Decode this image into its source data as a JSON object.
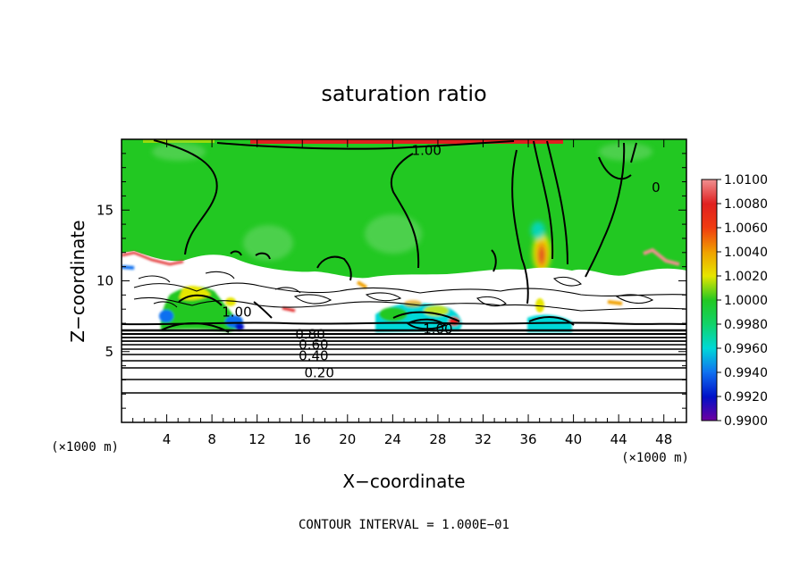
{
  "chart_data": {
    "type": "heatmap",
    "title": "saturation ratio",
    "xlabel": "X−coordinate",
    "ylabel": "Z−coordinate",
    "x_unit_label": "(×1000 m)",
    "y_unit_label": "(×1000 m)",
    "xlim": [
      0,
      50
    ],
    "ylim": [
      0,
      20
    ],
    "x_ticks": [
      4,
      8,
      12,
      16,
      20,
      24,
      28,
      32,
      36,
      40,
      44,
      48
    ],
    "y_ticks": [
      5,
      10,
      15
    ],
    "footer": "CONTOUR INTERVAL = 1.000E−01",
    "contour_interval": 0.1,
    "colorbar_labels": [
      "1.0100",
      "1.0080",
      "1.0060",
      "1.0040",
      "1.0020",
      "1.0000",
      "0.9980",
      "0.9960",
      "0.9940",
      "0.9920",
      "0.9900"
    ],
    "colorbar_colors": [
      "#f09090",
      "#e02020",
      "#f03c10",
      "#f0a000",
      "#e6e600",
      "#22c822",
      "#11d36a",
      "#00d8d8",
      "#1070f0",
      "#0010c8",
      "#7000a0"
    ],
    "contour_labels": [
      {
        "text": "1.00",
        "x": 27.0,
        "z": 19.2
      },
      {
        "text": "0",
        "x": 47.3,
        "z": 16.6
      },
      {
        "text": "1.00",
        "x": 10.2,
        "z": 7.8
      },
      {
        "text": "1.00",
        "x": 28.0,
        "z": 6.6
      },
      {
        "text": "0.80",
        "x": 16.7,
        "z": 6.2
      },
      {
        "text": "0.60",
        "x": 17.0,
        "z": 5.5
      },
      {
        "text": "0.40",
        "x": 17.0,
        "z": 4.7
      },
      {
        "text": "0.20",
        "x": 17.5,
        "z": 3.5
      }
    ]
  }
}
